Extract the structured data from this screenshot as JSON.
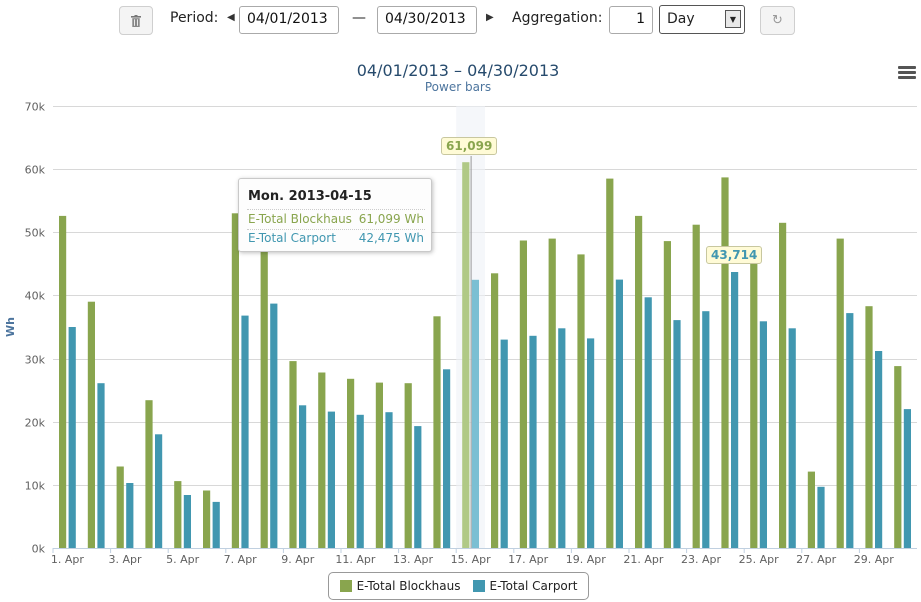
{
  "toolbar": {
    "delete_icon": "trash-icon",
    "period_label": "Period:",
    "start_date": "04/01/2013",
    "dash": "—",
    "end_date": "04/30/2013",
    "aggregation_label": "Aggregation:",
    "aggregation_count": "1",
    "aggregation_unit": "Day",
    "refresh_icon": "refresh-icon"
  },
  "colors": {
    "blockhaus": "#89a54e",
    "carport": "#4197b0"
  },
  "tooltip": {
    "date": "Mon. 2013-04-15",
    "rows": [
      {
        "name": "E-Total Blockhaus",
        "value": "61,099",
        "unit": "Wh"
      },
      {
        "name": "E-Total Carport",
        "value": "42,475",
        "unit": "Wh"
      }
    ]
  },
  "data_labels": {
    "blockhaus_peak": "61,099",
    "carport_peak": "43,714"
  },
  "chart_data": {
    "type": "bar",
    "title": "04/01/2013 – 04/30/2013",
    "subtitle": "Power bars",
    "ylabel": "Wh",
    "ylim": [
      0,
      70000
    ],
    "yticks": [
      "0k",
      "10k",
      "20k",
      "30k",
      "40k",
      "50k",
      "60k",
      "70k"
    ],
    "xticks": [
      "1. Apr",
      "3. Apr",
      "5. Apr",
      "7. Apr",
      "9. Apr",
      "11. Apr",
      "13. Apr",
      "15. Apr",
      "17. Apr",
      "19. Apr",
      "21. Apr",
      "23. Apr",
      "25. Apr",
      "27. Apr",
      "29. Apr"
    ],
    "categories": [
      "2013-04-01",
      "2013-04-02",
      "2013-04-03",
      "2013-04-04",
      "2013-04-05",
      "2013-04-06",
      "2013-04-07",
      "2013-04-08",
      "2013-04-09",
      "2013-04-10",
      "2013-04-11",
      "2013-04-12",
      "2013-04-13",
      "2013-04-14",
      "2013-04-15",
      "2013-04-16",
      "2013-04-17",
      "2013-04-18",
      "2013-04-19",
      "2013-04-20",
      "2013-04-21",
      "2013-04-22",
      "2013-04-23",
      "2013-04-24",
      "2013-04-25",
      "2013-04-26",
      "2013-04-27",
      "2013-04-28",
      "2013-04-29",
      "2013-04-30"
    ],
    "grid": true,
    "legend_position": "bottom-center",
    "series": [
      {
        "name": "E-Total Blockhaus",
        "values": [
          52600,
          39000,
          12900,
          23400,
          10600,
          9100,
          53000,
          47900,
          29600,
          27800,
          26800,
          26200,
          26100,
          36700,
          61099,
          43500,
          48700,
          49000,
          46500,
          58500,
          52600,
          48600,
          51200,
          58700,
          46000,
          51500,
          12100,
          49000,
          38300,
          28800
        ]
      },
      {
        "name": "E-Total Carport",
        "values": [
          35000,
          26100,
          10300,
          18000,
          8400,
          7300,
          36800,
          38700,
          22600,
          21600,
          21100,
          21500,
          19300,
          28300,
          42475,
          33000,
          33600,
          34800,
          33200,
          42500,
          39700,
          36100,
          37500,
          43714,
          35900,
          34800,
          9700,
          37200,
          31200,
          22000
        ]
      }
    ]
  }
}
